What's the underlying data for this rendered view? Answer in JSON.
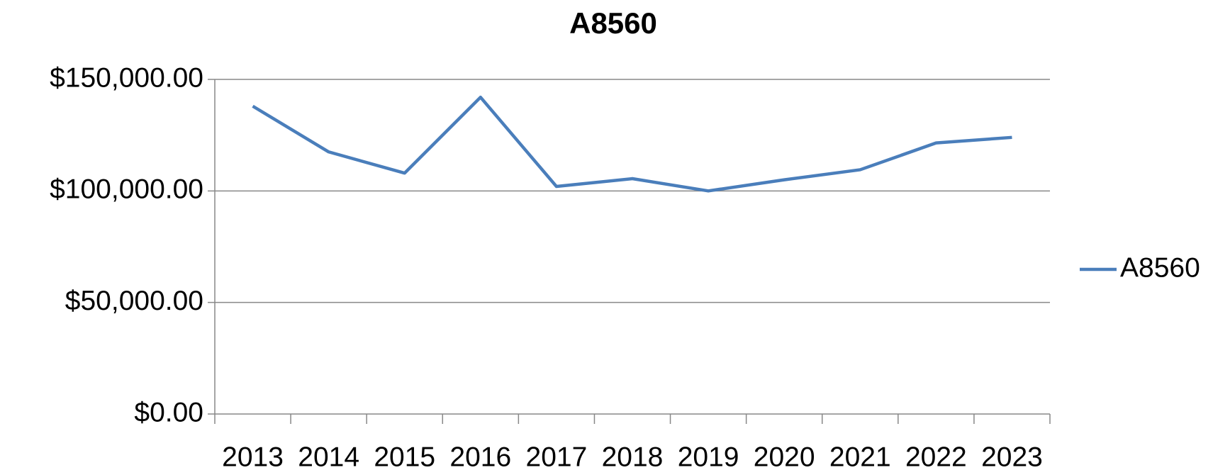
{
  "chart_data": {
    "type": "line",
    "title": "A8560",
    "categories": [
      "2013",
      "2014",
      "2015",
      "2016",
      "2017",
      "2018",
      "2019",
      "2020",
      "2021",
      "2022",
      "2023"
    ],
    "series": [
      {
        "name": "A8560",
        "color": "#4a7ebb",
        "values": [
          138000,
          117500,
          108000,
          142000,
          102000,
          105500,
          100000,
          105000,
          109500,
          121500,
          124000
        ]
      }
    ],
    "ylim": [
      0,
      150000
    ],
    "yticks": [
      {
        "value": 0,
        "label": "$0.00"
      },
      {
        "value": 50000,
        "label": "$50,000.00"
      },
      {
        "value": 100000,
        "label": "$100,000.00"
      },
      {
        "value": 150000,
        "label": "$150,000.00"
      }
    ],
    "grid": true,
    "legend": "right"
  }
}
